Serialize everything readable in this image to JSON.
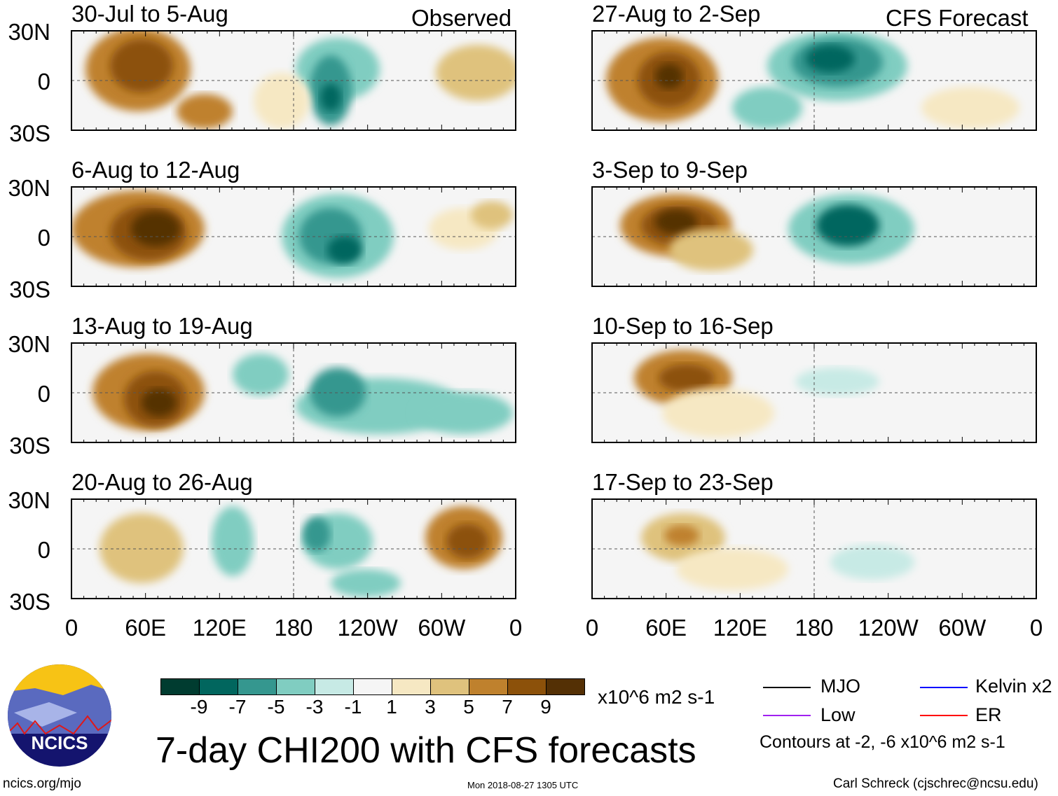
{
  "title": "7-day CHI200 with CFS forecasts",
  "website": "ncics.org/mjo",
  "timestamp": "Mon 2018-08-27 1305 UTC",
  "author": "Carl Schreck (cjschrec@ncsu.edu)",
  "logo_text": "NCICS",
  "chart_data": {
    "type": "heatmap",
    "columns": [
      {
        "label": "Observed"
      },
      {
        "label": "CFS Forecast"
      }
    ],
    "panels": [
      {
        "title": "30-Jul to 5-Aug",
        "column": "Observed"
      },
      {
        "title": "6-Aug to 12-Aug",
        "column": "Observed"
      },
      {
        "title": "13-Aug to 19-Aug",
        "column": "Observed"
      },
      {
        "title": "20-Aug to 26-Aug",
        "column": "Observed"
      },
      {
        "title": "27-Aug to 2-Sep",
        "column": "CFS Forecast"
      },
      {
        "title": "3-Sep to 9-Sep",
        "column": "CFS Forecast"
      },
      {
        "title": "10-Sep to 16-Sep",
        "column": "CFS Forecast"
      },
      {
        "title": "17-Sep to 23-Sep",
        "column": "CFS Forecast"
      }
    ],
    "y_ticks": [
      "30N",
      "0",
      "30S"
    ],
    "x_ticks": [
      "0",
      "60E",
      "120E",
      "180",
      "120W",
      "60W",
      "0"
    ],
    "colorbar": {
      "labels": [
        "-9",
        "-7",
        "-5",
        "-3",
        "-1",
        "1",
        "3",
        "5",
        "7",
        "9"
      ],
      "colors": [
        "#003c30",
        "#01665e",
        "#35978f",
        "#80cdc1",
        "#c7eae5",
        "#f5f5f5",
        "#f6e8c3",
        "#dfc27d",
        "#bf812d",
        "#8c510a",
        "#543005"
      ],
      "units": "x10^6 m2 s-1"
    },
    "legend": [
      {
        "label": "MJO",
        "color": "#000000"
      },
      {
        "label": "Kelvin x2",
        "color": "#0000ff"
      },
      {
        "label": "Low",
        "color": "#a020f0"
      },
      {
        "label": "ER",
        "color": "#ff0000"
      }
    ],
    "contour_note": "Contours at -2, -6 x10^6 m2 s-1"
  }
}
